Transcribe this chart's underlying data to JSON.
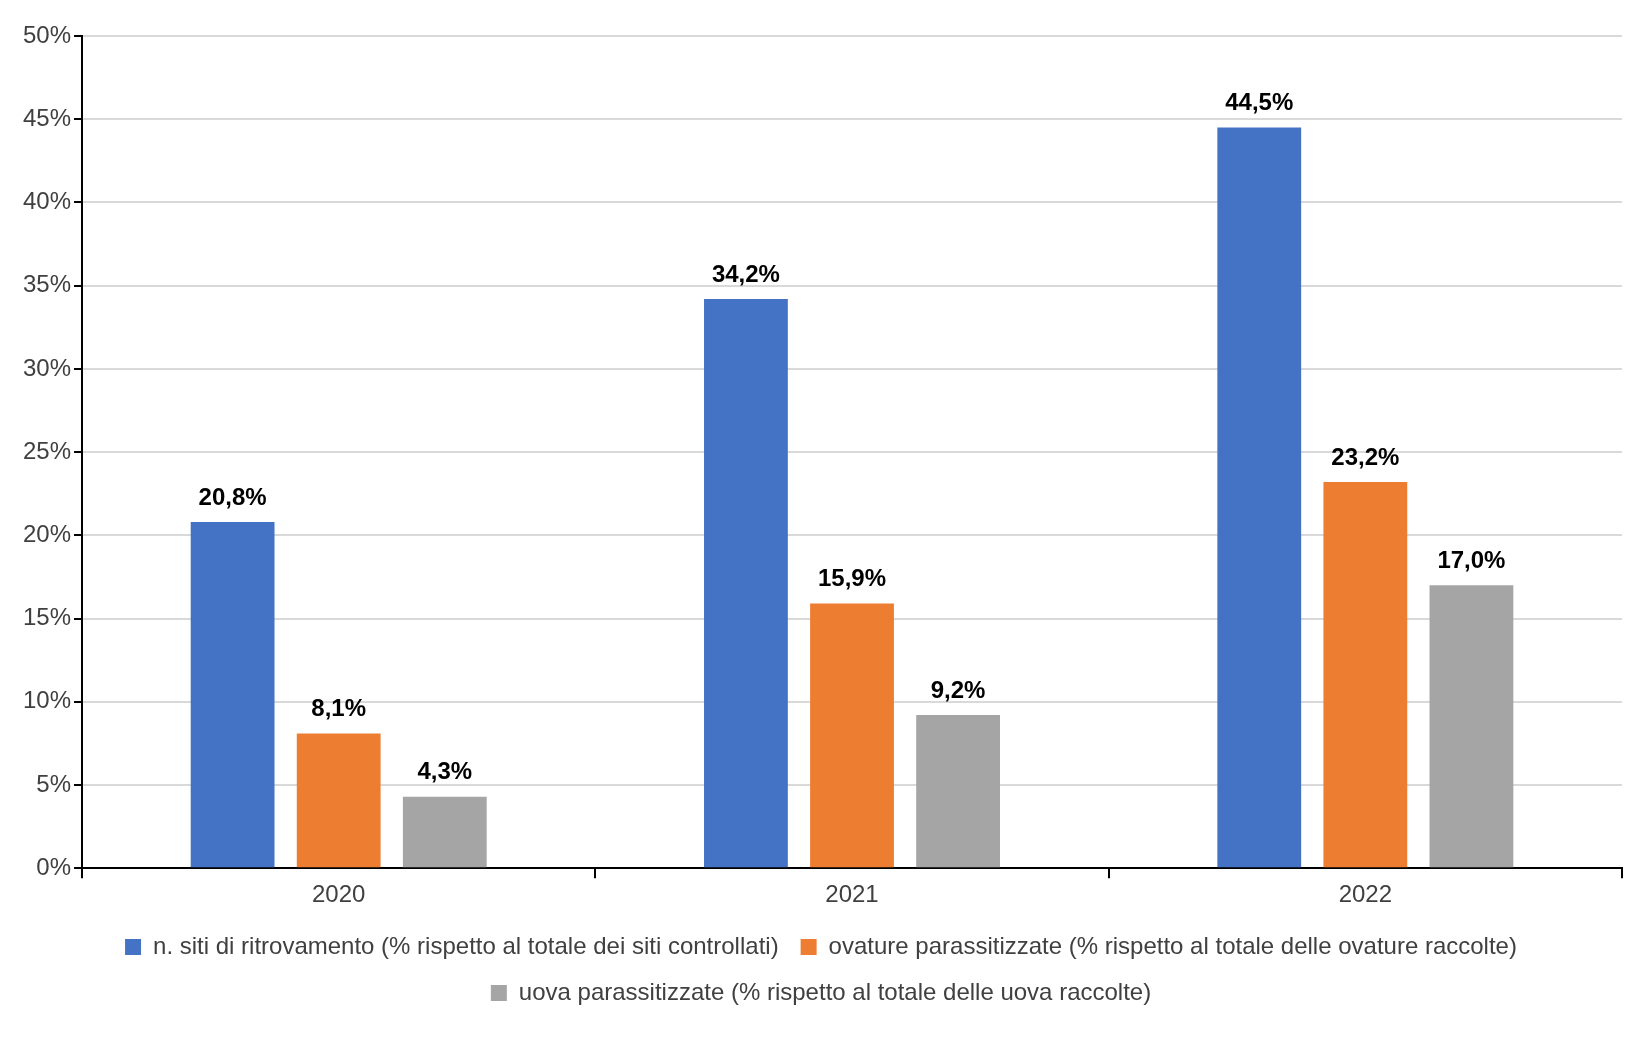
{
  "chart_data": {
    "type": "bar",
    "categories": [
      "2020",
      "2021",
      "2022"
    ],
    "series": [
      {
        "name": "n. siti di ritrovamento (% rispetto al totale dei siti controllati)",
        "color": "#4472c4",
        "values": [
          20.8,
          34.2,
          44.5
        ],
        "value_labels": [
          "20,8%",
          "34,2%",
          "44,5%"
        ]
      },
      {
        "name": "ovature parassitizzate (% rispetto al totale delle ovature raccolte)",
        "color": "#ed7d31",
        "values": [
          8.1,
          15.9,
          23.2
        ],
        "value_labels": [
          "8,1%",
          "15,9%",
          "23,2%"
        ]
      },
      {
        "name": "uova parassitizzate (% rispetto al totale delle uova raccolte)",
        "color": "#a5a5a5",
        "values": [
          4.3,
          9.2,
          17.0
        ],
        "value_labels": [
          "4,3%",
          "9,2%",
          "17,0%"
        ]
      }
    ],
    "ylim": [
      0,
      50
    ],
    "yticks": [
      {
        "value": 0,
        "label": "0%"
      },
      {
        "value": 5,
        "label": "5%"
      },
      {
        "value": 10,
        "label": "10%"
      },
      {
        "value": 15,
        "label": "15%"
      },
      {
        "value": 20,
        "label": "20%"
      },
      {
        "value": 25,
        "label": "25%"
      },
      {
        "value": 30,
        "label": "30%"
      },
      {
        "value": 35,
        "label": "35%"
      },
      {
        "value": 40,
        "label": "40%"
      },
      {
        "value": 45,
        "label": "45%"
      },
      {
        "value": 50,
        "label": "50%"
      }
    ],
    "grid": "y",
    "legend": "bottom"
  }
}
